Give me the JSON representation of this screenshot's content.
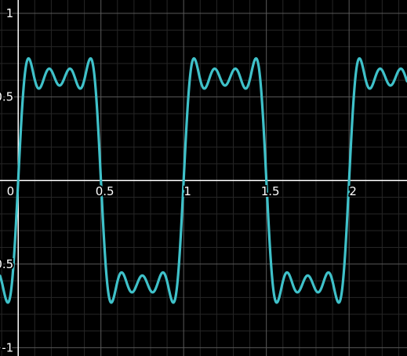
{
  "chart_data": {
    "type": "line",
    "title": "",
    "xlabel": "",
    "ylabel": "",
    "xlim": [
      -0.11,
      2.35
    ],
    "ylim": [
      -1.05,
      1.08
    ],
    "x_ticks": [
      {
        "value": 0,
        "label": "0"
      },
      {
        "value": 0.5,
        "label": "0.5"
      },
      {
        "value": 1,
        "label": "1"
      },
      {
        "value": 1.5,
        "label": "1.5"
      },
      {
        "value": 2,
        "label": "2"
      }
    ],
    "y_ticks": [
      {
        "value": 1,
        "label": "1"
      },
      {
        "value": 0.5,
        "label": "0.5"
      },
      {
        "value": -0.5,
        "label": "-0.5"
      },
      {
        "value": -1,
        "label": "-1"
      }
    ],
    "grid": {
      "major_step": 0.5,
      "minor_step": 0.1
    },
    "series": [
      {
        "color": "#3fc1c9",
        "period": 1,
        "harmonics": [
          {
            "k": 1,
            "amplitude": 1.0
          },
          {
            "k": 3,
            "amplitude": 0.3333
          },
          {
            "k": 5,
            "amplitude": 0.2
          },
          {
            "k": 7,
            "amplitude": 0.1429
          }
        ],
        "scale": 0.7854,
        "peak_value": 0.92,
        "plateau_min": 0.71
      }
    ],
    "colors": {
      "background": "#000000",
      "minor_grid": "#262626",
      "major_grid": "#595959",
      "axis": "#ffffff",
      "curve": "#3fc1c9"
    }
  }
}
